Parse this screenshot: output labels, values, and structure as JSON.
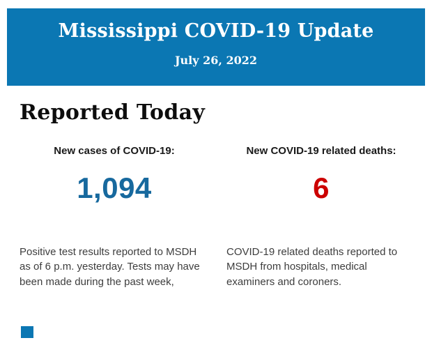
{
  "header": {
    "title": "Mississippi COVID-19 Update",
    "date": "July 26, 2022",
    "background_color": "#0b77b3",
    "text_color": "#ffffff"
  },
  "section": {
    "title": "Reported Today"
  },
  "stats": [
    {
      "label": "New cases of COVID-19:",
      "value": "1,094",
      "value_color": "#17699e",
      "description": "Positive test results reported to MSDH as of 6 p.m. yesterday. Tests may have been made during the past week,"
    },
    {
      "label": "New COVID-19 related deaths:",
      "value": "6",
      "value_color": "#cc0000",
      "description": "COVID-19 related deaths reported to MSDH from hospitals, medical examiners and coroners."
    }
  ],
  "footer_fragment": {
    "color": "#0b77b3"
  }
}
